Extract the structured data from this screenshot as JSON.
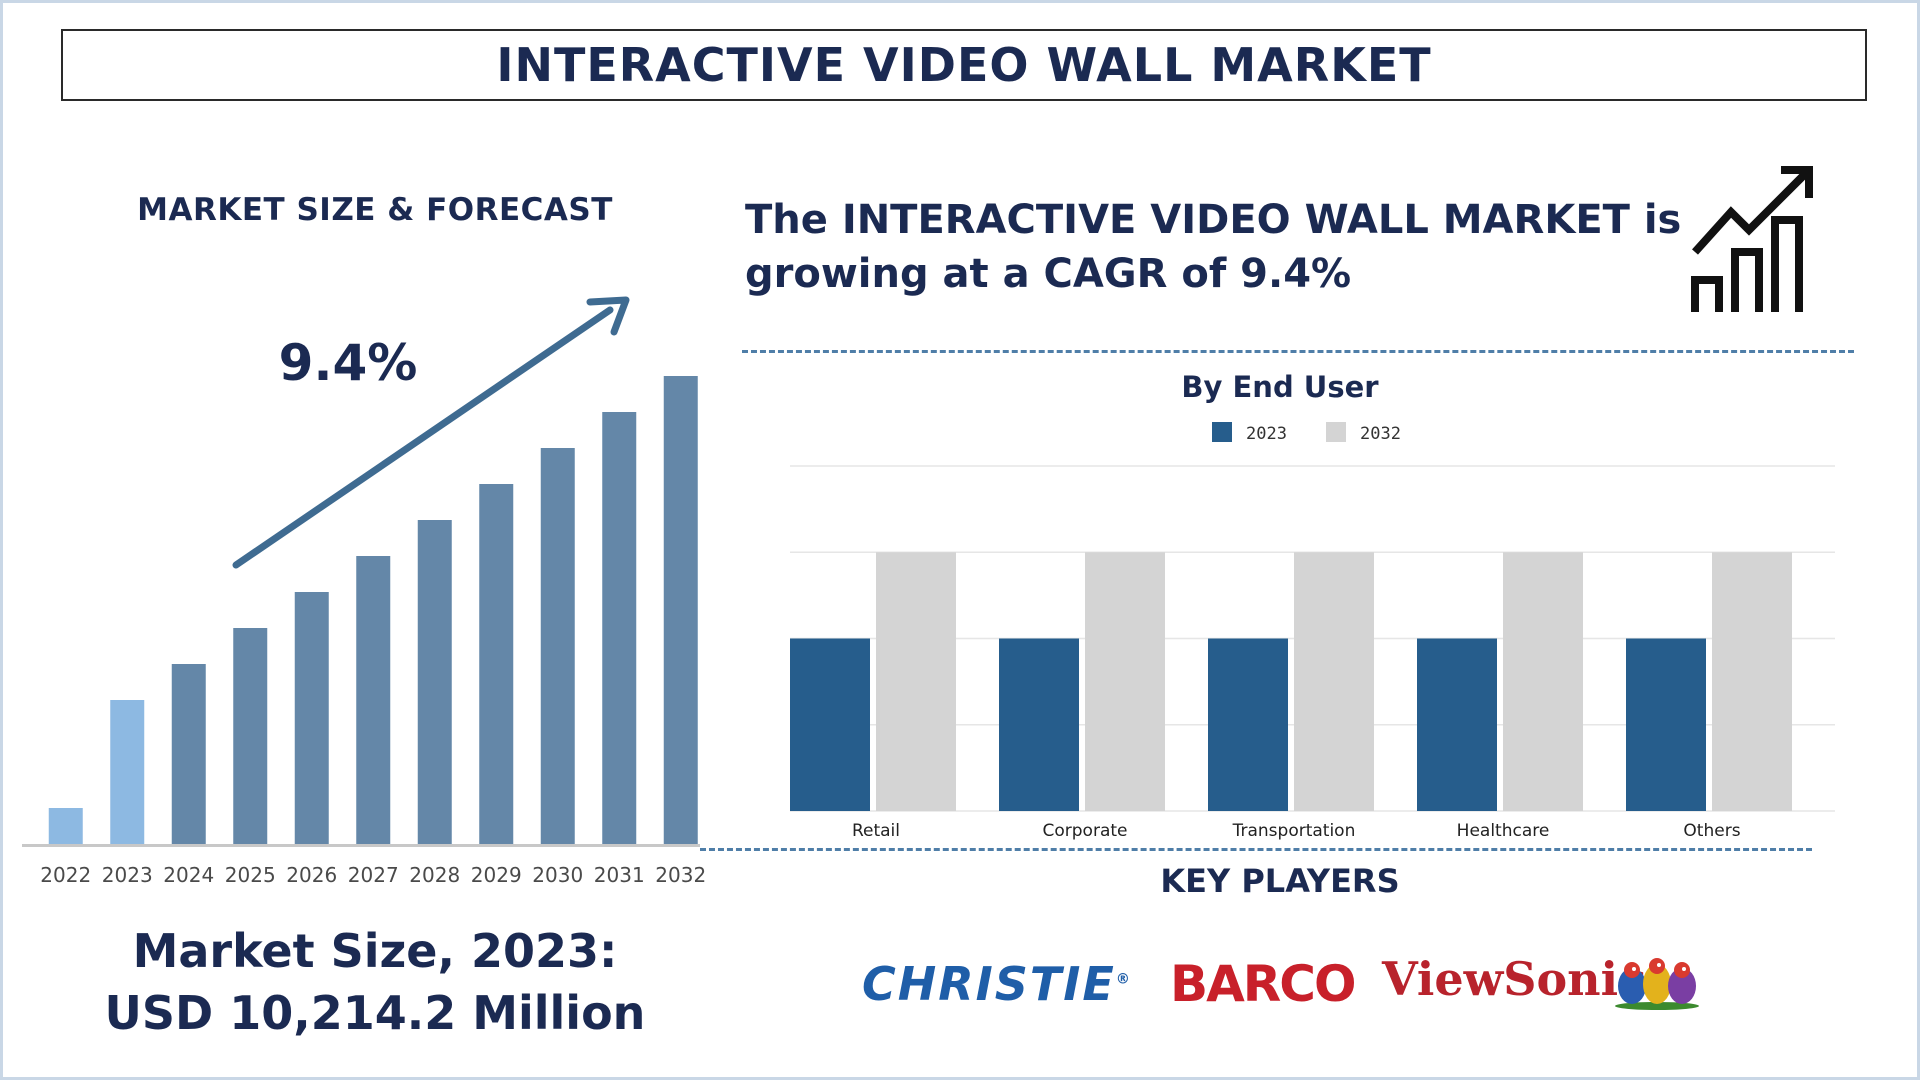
{
  "title": "INTERACTIVE VIDEO WALL MARKET",
  "left": {
    "heading": "MARKET SIZE & FORECAST",
    "growth_label": "9.4%",
    "market_size_line1": "Market Size, 2023:",
    "market_size_line2": "USD 10,214.2 Million"
  },
  "right": {
    "cagr_line1": "The INTERACTIVE VIDEO WALL MARKET is",
    "cagr_line2": "growing at a CAGR of 9.4%",
    "key_players_heading": "KEY PLAYERS",
    "logos": {
      "christie": "CHRISTIE",
      "christie_mark": "®",
      "barco": "BARCO",
      "viewsonic": "ViewSonic",
      "viewsonic_mark": "®"
    }
  },
  "colors": {
    "navy_text": "#1b2a52",
    "bar_dark": "#6487a8",
    "bar_light": "#8db9e2",
    "arrow": "#3f6b91",
    "series_2023": "#265d8c",
    "series_2032": "#d4d4d4",
    "dashed": "#4f7ea8"
  },
  "chart_data": [
    {
      "type": "bar",
      "title": "MARKET SIZE & FORECAST",
      "categories": [
        "2022",
        "2023",
        "2024",
        "2025",
        "2026",
        "2027",
        "2028",
        "2029",
        "2030",
        "2031",
        "2032"
      ],
      "values": [
        1,
        4,
        5,
        6,
        7,
        8,
        9,
        10,
        11,
        12,
        13
      ],
      "highlight": [
        "2022",
        "2023"
      ],
      "annotation": "9.4%",
      "ylim": [
        0,
        13.5
      ],
      "grid": false,
      "legend": "none"
    },
    {
      "type": "bar",
      "title": "By End User",
      "categories": [
        "Retail",
        "Corporate",
        "Transportation",
        "Healthcare",
        "Others"
      ],
      "series": [
        {
          "name": "2023",
          "values": [
            2,
            2,
            2,
            2,
            2
          ]
        },
        {
          "name": "2032",
          "values": [
            3,
            3,
            3,
            3,
            3
          ]
        }
      ],
      "ylim": [
        0,
        4
      ],
      "grid": true,
      "legend": "top-center"
    }
  ]
}
